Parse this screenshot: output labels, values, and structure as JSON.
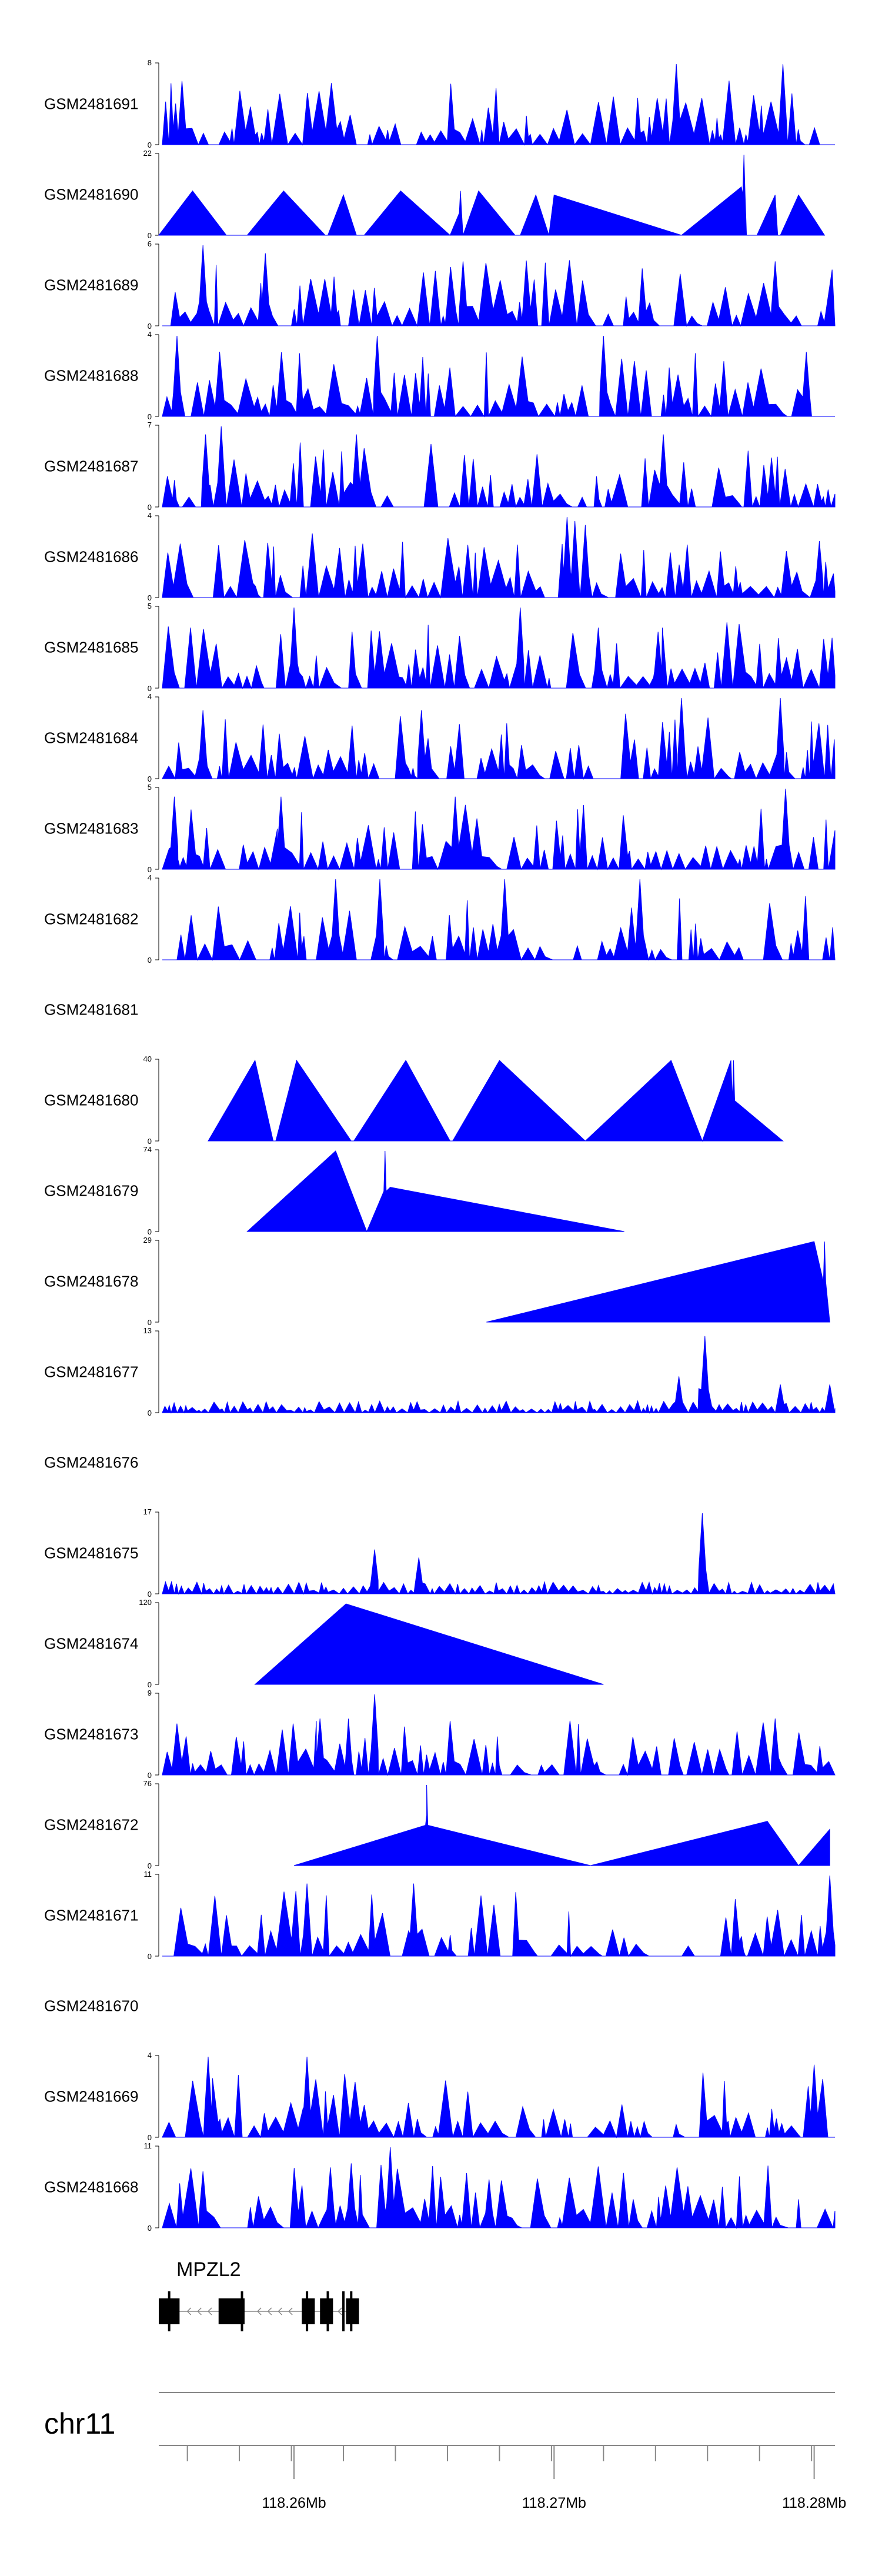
{
  "chart_data": {
    "type": "area",
    "fill_color": "#0000ff",
    "track_profile_style": "dense-noise-or-sparse-triangles",
    "x_range_mb": [
      118.2548,
      118.2808
    ],
    "tracks": [
      {
        "name": "GSM2481691",
        "ymax": "8",
        "ymin": "0",
        "max": 8,
        "profile": "dense",
        "peaks": [
          [
            118.2747,
            1.0
          ],
          [
            118.2788,
            1.0
          ]
        ]
      },
      {
        "name": "GSM2481690",
        "ymax": "22",
        "ymin": "0",
        "max": 22,
        "profile": "sparse",
        "peaks": [
          [
            118.2664,
            0.55
          ],
          [
            118.2773,
            1.0
          ]
        ],
        "triangles": [
          [
            118.2548,
            118.2561,
            118.2574,
            0.55
          ],
          [
            118.2582,
            118.2596,
            118.2612,
            0.55
          ],
          [
            118.2613,
            118.2619,
            118.2627,
            0.5
          ],
          [
            118.2624,
            118.2641,
            118.266,
            0.55
          ],
          [
            118.2665,
            118.2671,
            118.2685,
            0.55
          ],
          [
            118.2687,
            118.2693,
            118.2698,
            0.5
          ],
          [
            118.2698,
            118.27,
            118.2749,
            0.5
          ],
          [
            118.2749,
            118.2772,
            118.2774,
            0.6
          ],
          [
            118.2778,
            118.2785,
            118.2786,
            0.5
          ],
          [
            118.2787,
            118.2794,
            118.2804,
            0.5
          ]
        ]
      },
      {
        "name": "GSM2481689",
        "ymax": "6",
        "ymin": "0",
        "max": 6,
        "profile": "dense",
        "peaks": [
          [
            118.2565,
            1.0
          ],
          [
            118.2589,
            0.9
          ],
          [
            118.2665,
            0.8
          ],
          [
            118.2785,
            0.8
          ]
        ]
      },
      {
        "name": "GSM2481688",
        "ymax": "4",
        "ymin": "0",
        "max": 4,
        "profile": "dense",
        "peaks": [
          [
            118.2555,
            1.0
          ],
          [
            118.2632,
            1.0
          ],
          [
            118.2719,
            1.0
          ],
          [
            118.2797,
            0.8
          ]
        ]
      },
      {
        "name": "GSM2481687",
        "ymax": "7",
        "ymin": "0",
        "max": 7,
        "profile": "dense",
        "peaks": [
          [
            118.2572,
            1.0
          ],
          [
            118.2566,
            0.9
          ],
          [
            118.2624,
            0.9
          ],
          [
            118.2742,
            0.9
          ]
        ]
      },
      {
        "name": "GSM2481686",
        "ymax": "4",
        "ymin": "0",
        "max": 4,
        "profile": "dense",
        "peaks": [
          [
            118.2705,
            1.0
          ],
          [
            118.2708,
            0.95
          ],
          [
            118.2712,
            0.9
          ],
          [
            118.2802,
            0.7
          ]
        ]
      },
      {
        "name": "GSM2481685",
        "ymax": "5",
        "ymin": "0",
        "max": 5,
        "profile": "dense",
        "peaks": [
          [
            118.26,
            1.0
          ],
          [
            118.2687,
            1.0
          ],
          [
            118.2717,
            0.75
          ],
          [
            118.274,
            0.7
          ]
        ]
      },
      {
        "name": "GSM2481684",
        "ymax": "4",
        "ymin": "0",
        "max": 4,
        "profile": "dense",
        "peaks": [
          [
            118.2565,
            0.85
          ],
          [
            118.2649,
            0.85
          ],
          [
            118.2749,
            1.0
          ],
          [
            118.2787,
            1.0
          ]
        ]
      },
      {
        "name": "GSM2481683",
        "ymax": "5",
        "ymin": "0",
        "max": 5,
        "profile": "dense",
        "peaks": [
          [
            118.2554,
            0.9
          ],
          [
            118.2595,
            0.9
          ],
          [
            118.2662,
            0.9
          ],
          [
            118.2789,
            1.0
          ]
        ]
      },
      {
        "name": "GSM2481682",
        "ymax": "4",
        "ymin": "0",
        "max": 4,
        "profile": "dense",
        "peaks": [
          [
            118.2616,
            1.0
          ],
          [
            118.2633,
            1.0
          ],
          [
            118.2681,
            1.0
          ],
          [
            118.2733,
            1.0
          ]
        ]
      },
      {
        "name": "GSM2481681",
        "ymax": "",
        "ymin": "",
        "max": 0,
        "profile": "empty",
        "peaks": []
      },
      {
        "name": "GSM2481680",
        "ymax": "40",
        "ymin": "0",
        "max": 40,
        "profile": "sparse",
        "peaks": [
          [
            118.2769,
            1.0
          ]
        ],
        "triangles": [
          [
            118.2567,
            118.2585,
            118.2592,
            1.0
          ],
          [
            118.2593,
            118.2601,
            118.2622,
            1.0
          ],
          [
            118.2623,
            118.2643,
            118.266,
            1.0
          ],
          [
            118.2661,
            118.2679,
            118.2712,
            1.0
          ],
          [
            118.2712,
            118.2745,
            118.2757,
            1.0
          ],
          [
            118.2757,
            118.2768,
            118.2788,
            1.0
          ]
        ]
      },
      {
        "name": "GSM2481679",
        "ymax": "74",
        "ymin": "0",
        "max": 74,
        "profile": "sparse",
        "peaks": [
          [
            118.2635,
            1.0
          ]
        ],
        "triangles": [
          [
            118.2582,
            118.2616,
            118.2628,
            1.0
          ],
          [
            118.2628,
            118.2637,
            118.2727,
            0.55
          ]
        ]
      },
      {
        "name": "GSM2481678",
        "ymax": "29",
        "ymin": "0",
        "max": 29,
        "profile": "sparse",
        "peaks": [
          [
            118.2804,
            1.0
          ]
        ],
        "triangles": [
          [
            118.2674,
            118.28,
            118.2806,
            1.0
          ]
        ]
      },
      {
        "name": "GSM2481677",
        "ymax": "13",
        "ymin": "0",
        "max": 13,
        "profile": "dense-low",
        "peaks": [
          [
            118.2757,
            1.0
          ],
          [
            118.2758,
            0.95
          ],
          [
            118.2748,
            0.45
          ],
          [
            118.2787,
            0.35
          ],
          [
            118.2806,
            0.35
          ]
        ]
      },
      {
        "name": "GSM2481676",
        "ymax": "",
        "ymin": "",
        "max": 0,
        "profile": "empty",
        "peaks": []
      },
      {
        "name": "GSM2481675",
        "ymax": "17",
        "ymin": "0",
        "max": 17,
        "profile": "dense-low",
        "peaks": [
          [
            118.2757,
            1.0
          ],
          [
            118.2631,
            0.55
          ],
          [
            118.2648,
            0.45
          ]
        ]
      },
      {
        "name": "GSM2481674",
        "ymax": "120",
        "ymin": "0",
        "max": 120,
        "profile": "sparse",
        "peaks": [],
        "triangles": [
          [
            118.2585,
            118.262,
            118.2719,
            1.0
          ]
        ]
      },
      {
        "name": "GSM2481673",
        "ymax": "9",
        "ymin": "0",
        "max": 9,
        "profile": "dense",
        "peaks": [
          [
            118.2631,
            1.0
          ],
          [
            118.261,
            0.7
          ],
          [
            118.2785,
            0.7
          ]
        ]
      },
      {
        "name": "GSM2481672",
        "ymax": "76",
        "ymin": "0",
        "max": 76,
        "profile": "sparse",
        "peaks": [
          [
            118.2651,
            1.0
          ]
        ],
        "triangles": [
          [
            118.26,
            118.2651,
            118.2714,
            0.62
          ],
          [
            118.2714,
            118.2782,
            118.2794,
            0.55
          ],
          [
            118.2794,
            118.2806,
            118.2806,
            0.45
          ]
        ]
      },
      {
        "name": "GSM2481671",
        "ymax": "11",
        "ymin": "0",
        "max": 11,
        "profile": "dense",
        "peaks": [
          [
            118.2605,
            0.9
          ],
          [
            118.2646,
            0.9
          ],
          [
            118.2806,
            1.0
          ]
        ]
      },
      {
        "name": "GSM2481670",
        "ymax": "",
        "ymin": "",
        "max": 0,
        "profile": "empty",
        "peaks": []
      },
      {
        "name": "GSM2481669",
        "ymax": "4",
        "ymin": "0",
        "max": 4,
        "profile": "dense",
        "peaks": [
          [
            118.2567,
            1.0
          ],
          [
            118.2605,
            1.0
          ],
          [
            118.28,
            0.9
          ]
        ]
      },
      {
        "name": "GSM2481668",
        "ymax": "11",
        "ymin": "0",
        "max": 11,
        "profile": "dense",
        "peaks": [
          [
            118.2637,
            1.0
          ],
          [
            118.2614,
            0.75
          ],
          [
            118.2622,
            0.8
          ],
          [
            118.2565,
            0.7
          ],
          [
            118.2675,
            0.6
          ]
        ]
      }
    ],
    "gene_track": {
      "gene": "MPZL2",
      "strand": "-",
      "exons": [
        [
          118.2548,
          118.2556
        ],
        [
          118.2571,
          118.2581
        ],
        [
          118.2603,
          118.2608
        ],
        [
          118.261,
          118.2615
        ],
        [
          118.262,
          118.2625
        ]
      ],
      "exon_thin_markers": [
        118.2552,
        118.258,
        118.2605,
        118.2613,
        118.2619,
        118.2622
      ],
      "intron_arrow_positions": [
        118.2559,
        118.2563,
        118.2567,
        118.2586,
        118.259,
        118.2594,
        118.2598,
        118.2617
      ]
    },
    "axis": {
      "chromosome": "chr11",
      "minor_ticks_mb": [
        118.2559,
        118.2579,
        118.2599,
        118.2619,
        118.2639,
        118.2659,
        118.2679,
        118.2699,
        118.2719,
        118.2739,
        118.2759,
        118.2779,
        118.2799
      ],
      "major_ticks": [
        {
          "mb": 118.26,
          "label": "118.26Mb"
        },
        {
          "mb": 118.27,
          "label": "118.27Mb"
        },
        {
          "mb": 118.28,
          "label": "118.28Mb"
        }
      ]
    }
  }
}
